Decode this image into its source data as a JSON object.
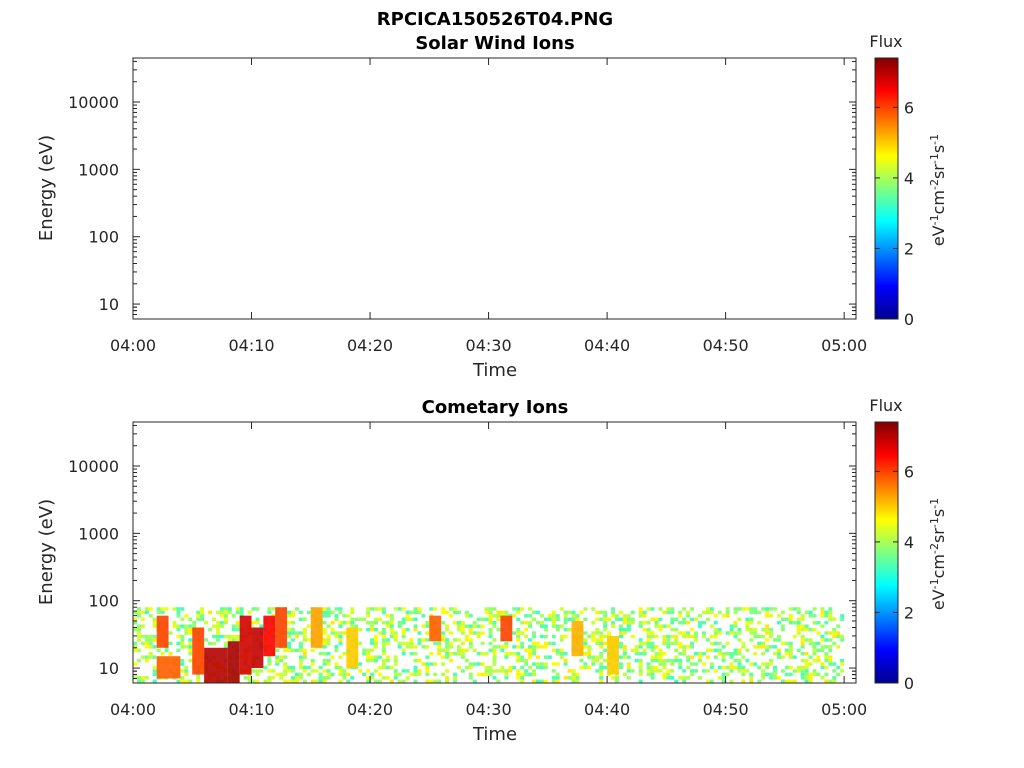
{
  "figure_title": "RPCICA150526T04.PNG",
  "chart_data": [
    {
      "type": "heatmap",
      "title": "Solar Wind Ions",
      "xlabel": "Time",
      "ylabel": "Energy (eV)",
      "y_scale": "log",
      "xlim": [
        "04:00",
        "05:01"
      ],
      "ylim": [
        6,
        45000
      ],
      "x_ticks": [
        "04:00",
        "04:10",
        "04:20",
        "04:30",
        "04:40",
        "04:50",
        "05:00"
      ],
      "y_ticks": [
        10,
        100,
        1000,
        10000
      ],
      "y_tick_labels": [
        "10",
        "100",
        "1000",
        "10000"
      ],
      "colorbar": {
        "title": "Flux",
        "label": "eV-1cm-2sr-1s-1",
        "label_parts": [
          "eV",
          "-1",
          "cm",
          "-2",
          "sr",
          "-1",
          "s",
          "-1"
        ],
        "range": [
          0,
          7.4
        ],
        "ticks": [
          0,
          2,
          4,
          6
        ],
        "tick_labels": [
          "0",
          "2",
          "4",
          "6"
        ],
        "colormap": "jet"
      },
      "cells": []
    },
    {
      "type": "heatmap",
      "title": "Cometary Ions",
      "xlabel": "Time",
      "ylabel": "Energy (eV)",
      "y_scale": "log",
      "xlim": [
        "04:00",
        "05:01"
      ],
      "ylim": [
        6,
        45000
      ],
      "x_ticks": [
        "04:00",
        "04:10",
        "04:20",
        "04:30",
        "04:40",
        "04:50",
        "05:00"
      ],
      "y_ticks": [
        10,
        100,
        1000,
        10000
      ],
      "y_tick_labels": [
        "10",
        "100",
        "1000",
        "10000"
      ],
      "colorbar": {
        "title": "Flux",
        "label": "eV-1cm-2sr-1s-1",
        "label_parts": [
          "eV",
          "-1",
          "cm",
          "-2",
          "sr",
          "-1",
          "s",
          "-1"
        ],
        "range": [
          0,
          7.4
        ],
        "ticks": [
          0,
          2,
          4,
          6
        ],
        "tick_labels": [
          "0",
          "2",
          "4",
          "6"
        ],
        "colormap": "jet"
      },
      "energy_range_eV": [
        6,
        80
      ],
      "time_range": [
        "04:00",
        "05:00"
      ],
      "cells": [
        {
          "t0": "04:02",
          "t1": "04:03",
          "e0": 20,
          "e1": 60,
          "flux": 6.0
        },
        {
          "t0": "04:02",
          "t1": "04:04",
          "e0": 7,
          "e1": 15,
          "flux": 5.8
        },
        {
          "t0": "04:05",
          "t1": "04:06",
          "e0": 8,
          "e1": 40,
          "flux": 6.0
        },
        {
          "t0": "04:06",
          "t1": "04:08",
          "e0": 6,
          "e1": 20,
          "flux": 7.0
        },
        {
          "t0": "04:08",
          "t1": "04:09",
          "e0": 6,
          "e1": 25,
          "flux": 7.1
        },
        {
          "t0": "04:09",
          "t1": "04:10",
          "e0": 8,
          "e1": 60,
          "flux": 6.8
        },
        {
          "t0": "04:10",
          "t1": "04:11",
          "e0": 10,
          "e1": 40,
          "flux": 6.9
        },
        {
          "t0": "04:11",
          "t1": "04:12",
          "e0": 15,
          "e1": 60,
          "flux": 6.5
        },
        {
          "t0": "04:12",
          "t1": "04:13",
          "e0": 20,
          "e1": 80,
          "flux": 6.0
        },
        {
          "t0": "04:15",
          "t1": "04:16",
          "e0": 20,
          "e1": 80,
          "flux": 5.3
        },
        {
          "t0": "04:18",
          "t1": "04:19",
          "e0": 10,
          "e1": 40,
          "flux": 5.0
        },
        {
          "t0": "04:25",
          "t1": "04:26",
          "e0": 25,
          "e1": 60,
          "flux": 5.8
        },
        {
          "t0": "04:31",
          "t1": "04:32",
          "e0": 25,
          "e1": 60,
          "flux": 6.0
        },
        {
          "t0": "04:37",
          "t1": "04:38",
          "e0": 15,
          "e1": 50,
          "flux": 5.2
        },
        {
          "t0": "04:40",
          "t1": "04:41",
          "e0": 8,
          "e1": 30,
          "flux": 5.0
        }
      ]
    }
  ]
}
